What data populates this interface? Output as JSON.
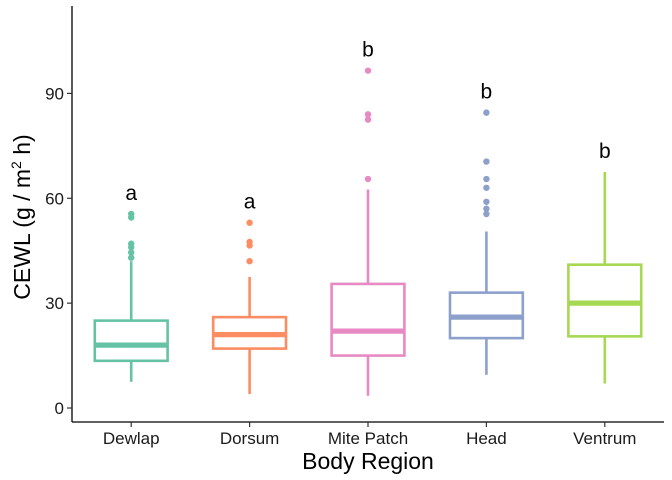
{
  "chart_data": {
    "type": "box",
    "xlabel": "Body Region",
    "ylabel_main": "CEWL (g / m",
    "ylabel_sup": "2",
    "ylabel_tail": " h)",
    "ylim": [
      -4,
      115
    ],
    "yticks": [
      0,
      30,
      60,
      90
    ],
    "grid": false,
    "legend": "none",
    "categories": [
      "Dewlap",
      "Dorsum",
      "Mite Patch",
      "Head",
      "Ventrum"
    ],
    "colors": [
      "#66c2a5",
      "#fc8d62",
      "#e78ac3",
      "#8da0cb",
      "#a6d854"
    ],
    "boxes": [
      {
        "name": "Dewlap",
        "whisker_low": 7.5,
        "q1": 13.5,
        "median": 18,
        "q3": 25,
        "whisker_high": 42,
        "outliers": [
          43,
          44.5,
          46,
          47,
          54.5,
          55.5
        ],
        "sig": "a"
      },
      {
        "name": "Dorsum",
        "whisker_low": 4,
        "q1": 17,
        "median": 21,
        "q3": 26,
        "whisker_high": 37.5,
        "outliers": [
          42,
          46.5,
          47.5,
          53
        ],
        "sig": "a"
      },
      {
        "name": "Mite Patch",
        "whisker_low": 3.5,
        "q1": 15,
        "median": 22,
        "q3": 35.5,
        "whisker_high": 62.5,
        "outliers": [
          65.5,
          82.5,
          84,
          96.5
        ],
        "sig": "b"
      },
      {
        "name": "Head",
        "whisker_low": 9.5,
        "q1": 20,
        "median": 26,
        "q3": 33,
        "whisker_high": 50.5,
        "outliers": [
          55.5,
          57,
          59,
          63,
          65.5,
          70.5,
          84.5
        ],
        "sig": "b"
      },
      {
        "name": "Ventrum",
        "whisker_low": 7,
        "q1": 20.5,
        "median": 30,
        "q3": 41,
        "whisker_high": 67.5,
        "outliers": [],
        "sig": "b"
      }
    ]
  }
}
